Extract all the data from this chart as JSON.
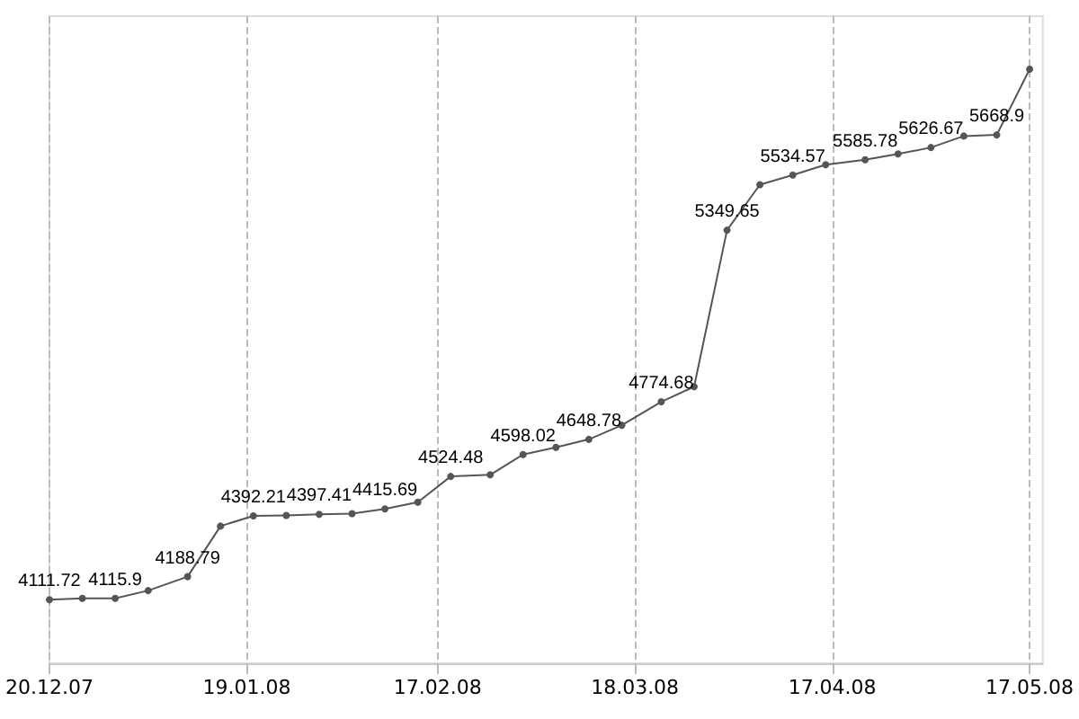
{
  "chart_data": {
    "type": "line",
    "x": [
      "2007-12-20",
      "2007-12-25",
      "2007-12-30",
      "2008-01-04",
      "2008-01-10",
      "2008-01-15",
      "2008-01-20",
      "2008-01-25",
      "2008-01-30",
      "2008-02-04",
      "2008-02-09",
      "2008-02-14",
      "2008-02-19",
      "2008-02-25",
      "2008-03-01",
      "2008-03-06",
      "2008-03-11",
      "2008-03-16",
      "2008-03-22",
      "2008-03-27",
      "2008-04-01",
      "2008-04-06",
      "2008-04-11",
      "2008-04-16",
      "2008-04-22",
      "2008-04-27",
      "2008-05-02",
      "2008-05-07",
      "2008-05-12",
      "2008-05-17"
    ],
    "series": [
      {
        "color": "#555555",
        "values": [
          4111.72,
          4116,
          4115.9,
          4142,
          4188.79,
          4358,
          4392.21,
          4394,
          4397.41,
          4400,
          4415.69,
          4438,
          4524.48,
          4530,
          4598.02,
          4622,
          4648.78,
          4696,
          4774.68,
          4825,
          5349.65,
          5502,
          5534.57,
          5569,
          5585.78,
          5605,
          5626.67,
          5665,
          5668.9,
          5889
        ],
        "value_labels": [
          "4111.72",
          null,
          "4115.9",
          null,
          "4188.79",
          null,
          "4392.21",
          null,
          "4397.41",
          null,
          "4415.69",
          null,
          "4524.48",
          null,
          "4598.02",
          null,
          "4648.78",
          null,
          "4774.68",
          null,
          "5349.65",
          null,
          "5534.57",
          null,
          "5585.78",
          null,
          "5626.67",
          null,
          "5668.9",
          null
        ]
      }
    ],
    "xlim": [
      "2007-12-20",
      "2008-05-19"
    ],
    "xticks": [
      {
        "value": "2007-12-20",
        "label": "20.12.07"
      },
      {
        "value": "2008-01-19",
        "label": "19.01.08"
      },
      {
        "value": "2008-02-17",
        "label": "17.02.08"
      },
      {
        "value": "2008-03-18",
        "label": "18.03.08"
      },
      {
        "value": "2008-04-17",
        "label": "17.04.08"
      },
      {
        "value": "2008-05-17",
        "label": "17.05.08"
      }
    ],
    "grid": "x",
    "tick_labels": "x",
    "marker": "circle",
    "line_style": "solid"
  }
}
